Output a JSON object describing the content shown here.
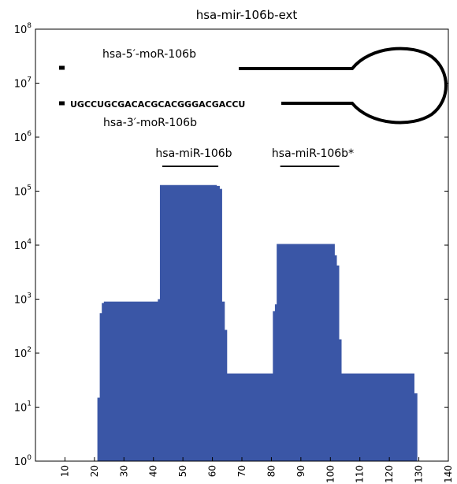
{
  "chart_data": {
    "type": "area",
    "title": "hsa-mir-106b-ext",
    "xlabel": "",
    "ylabel": "",
    "xlim": [
      0,
      140
    ],
    "ylim_exp": [
      0,
      8
    ],
    "yscale": "log",
    "grid": false,
    "fill_color": "#3a56a6",
    "xticks": [
      "10",
      "20",
      "30",
      "40",
      "50",
      "60",
      "70",
      "80",
      "90",
      "100",
      "110",
      "120",
      "130",
      "140"
    ],
    "yticks": [
      {
        "exp": 0,
        "base": "10",
        "sup": "0"
      },
      {
        "exp": 1,
        "base": "10",
        "sup": "1"
      },
      {
        "exp": 2,
        "base": "10",
        "sup": "2"
      },
      {
        "exp": 3,
        "base": "10",
        "sup": "3"
      },
      {
        "exp": 4,
        "base": "10",
        "sup": "4"
      },
      {
        "exp": 5,
        "base": "10",
        "sup": "5"
      },
      {
        "exp": 6,
        "base": "10",
        "sup": "6"
      },
      {
        "exp": 7,
        "base": "10",
        "sup": "7"
      },
      {
        "exp": 8,
        "base": "10",
        "sup": "8"
      }
    ],
    "steps": [
      {
        "x0": 21,
        "x1": 21.8,
        "y": 15
      },
      {
        "x0": 21.8,
        "x1": 22.5,
        "y": 550
      },
      {
        "x0": 22.5,
        "x1": 23.2,
        "y": 850
      },
      {
        "x0": 23.2,
        "x1": 41.5,
        "y": 900
      },
      {
        "x0": 41.5,
        "x1": 42.2,
        "y": 1000
      },
      {
        "x0": 42.2,
        "x1": 61.5,
        "y": 130000
      },
      {
        "x0": 61.5,
        "x1": 62.5,
        "y": 125000
      },
      {
        "x0": 62.5,
        "x1": 63.3,
        "y": 110000
      },
      {
        "x0": 63.3,
        "x1": 64.2,
        "y": 900
      },
      {
        "x0": 64.2,
        "x1": 65.0,
        "y": 270
      },
      {
        "x0": 65.0,
        "x1": 80.5,
        "y": 42
      },
      {
        "x0": 80.5,
        "x1": 81.2,
        "y": 600
      },
      {
        "x0": 81.2,
        "x1": 81.8,
        "y": 800
      },
      {
        "x0": 81.8,
        "x1": 101.5,
        "y": 10500
      },
      {
        "x0": 101.5,
        "x1": 102.2,
        "y": 6500
      },
      {
        "x0": 102.2,
        "x1": 103.0,
        "y": 4200
      },
      {
        "x0": 103.0,
        "x1": 103.8,
        "y": 180
      },
      {
        "x0": 103.8,
        "x1": 128.5,
        "y": 42
      },
      {
        "x0": 128.5,
        "x1": 129.5,
        "y": 18
      }
    ],
    "annotations": {
      "mature_5p": {
        "label": "hsa-miR-106b",
        "x0": 43,
        "x1": 62
      },
      "mature_3p": {
        "label": "hsa-miR-106b*",
        "x0": 83,
        "x1": 103
      },
      "mor_5p_label": "hsa-5′-moR-106b",
      "mor_3p_label": "hsa-3′-moR-106b",
      "sequence": "UGCCUGCGACACGCACGGGACGACCU"
    }
  }
}
